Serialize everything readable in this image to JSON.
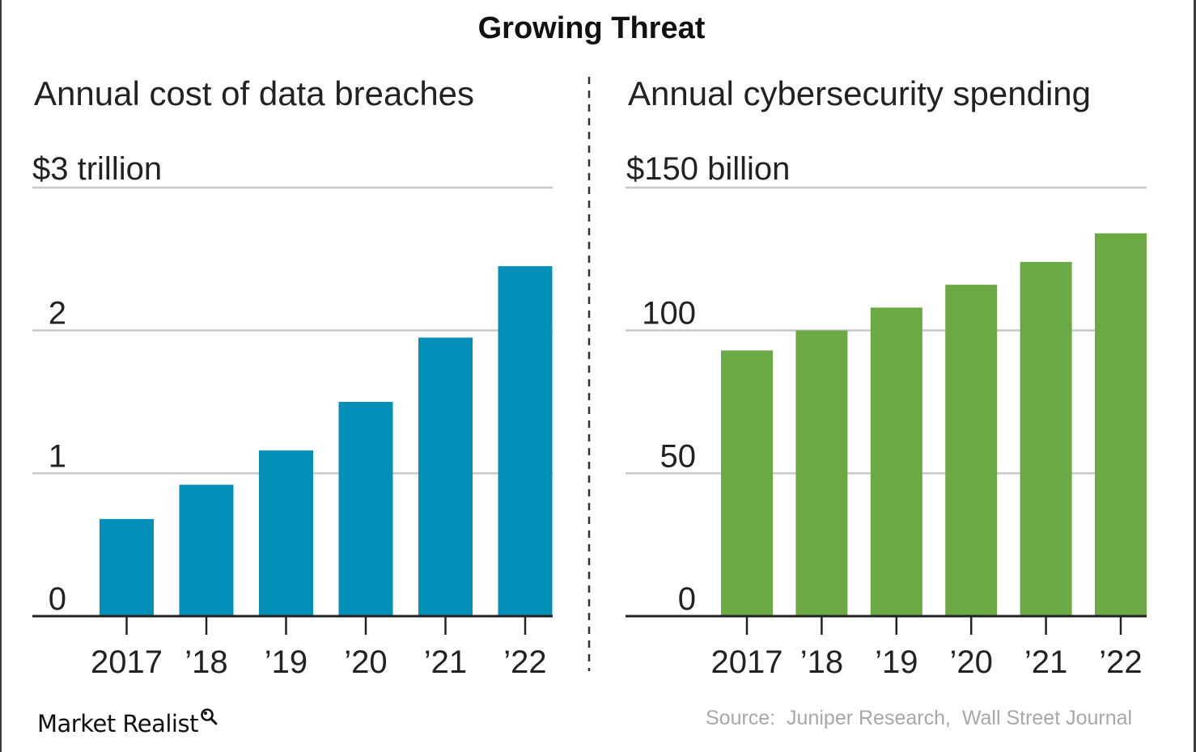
{
  "title": "Growing Threat",
  "source": "Source:  Juniper Research,  Wall Street Journal",
  "brand": {
    "name": "Market Realist",
    "icon": "magnifier-icon"
  },
  "colors": {
    "breaches_bar": "#0290b9",
    "spending_bar": "#6ba944",
    "gridline": "#c8c8c8",
    "axis": "#222222",
    "divider": "#333333",
    "text": "#222222",
    "source_text": "#a8a8a8"
  },
  "chart_data": [
    {
      "type": "bar",
      "title": "Annual cost of data breaches",
      "unit_label": "$3 trillion",
      "categories": [
        "2017",
        "’18",
        "’19",
        "’20",
        "’21",
        "’22"
      ],
      "values": [
        0.68,
        0.92,
        1.16,
        1.5,
        1.95,
        2.45
      ],
      "yticks": [
        0,
        1,
        2,
        3
      ],
      "ytick_labels": [
        "0",
        "1",
        "2",
        "$3 trillion"
      ],
      "ylim": [
        0,
        3
      ],
      "grid": true
    },
    {
      "type": "bar",
      "title": "Annual cybersecurity spending",
      "unit_label": "$150 billion",
      "categories": [
        "2017",
        "’18",
        "’19",
        "’20",
        "’21",
        "’22"
      ],
      "values": [
        93,
        100,
        108,
        116,
        124,
        134
      ],
      "yticks": [
        0,
        50,
        100,
        150
      ],
      "ytick_labels": [
        "0",
        "50",
        "100",
        "$150 billion"
      ],
      "ylim": [
        0,
        150
      ],
      "grid": true
    }
  ]
}
